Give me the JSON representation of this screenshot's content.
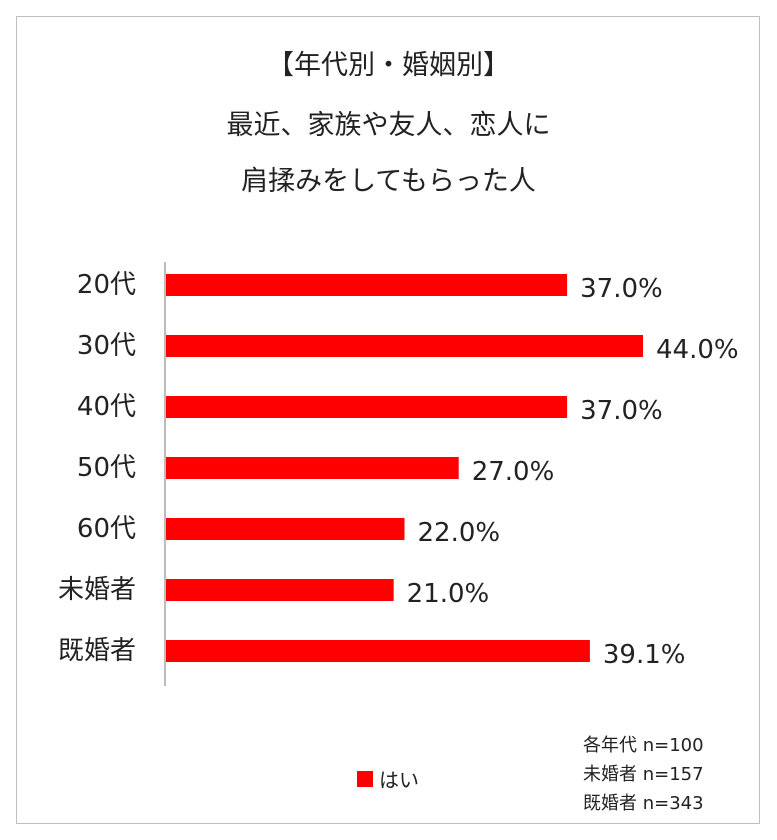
{
  "title_lines": [
    "【年代別・婚姻別】",
    "最近、家族や友人、恋人に",
    "肩揉みをしてもらった人"
  ],
  "chart_data": {
    "type": "bar",
    "orientation": "horizontal",
    "categories": [
      "20代",
      "30代",
      "40代",
      "50代",
      "60代",
      "未婚者",
      "既婚者"
    ],
    "series": [
      {
        "name": "はい",
        "values": [
          37.0,
          44.0,
          37.0,
          27.0,
          22.0,
          21.0,
          39.1
        ],
        "color": "#ff0000"
      }
    ],
    "value_labels": [
      "37.0%",
      "44.0%",
      "37.0%",
      "27.0%",
      "22.0%",
      "21.0%",
      "39.1%"
    ],
    "xlim": [
      0,
      44
    ],
    "grid": false,
    "legend_position": "bottom-center"
  },
  "legend": {
    "label": "はい",
    "color": "#ff0000"
  },
  "notes": [
    "各年代 n=100",
    "未婚者 n=157",
    "既婚者 n=343"
  ]
}
